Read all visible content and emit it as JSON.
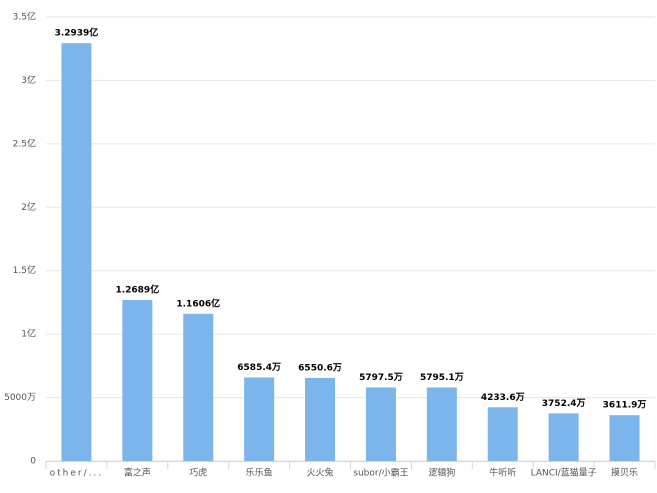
{
  "chart_data": {
    "type": "bar",
    "categories": [
      "other/...",
      "富之声",
      "巧虎",
      "乐乐鱼",
      "火火兔",
      "subor/小霸王",
      "逻辑狗",
      "牛听听",
      "LANCI/蓝猫量子",
      "摸贝乐"
    ],
    "values": [
      3.2939,
      1.2689,
      1.1606,
      0.65854,
      0.65506,
      0.57975,
      0.57951,
      0.42336,
      0.37524,
      0.36119
    ],
    "value_labels": [
      "3.2939亿",
      "1.2689亿",
      "1.1606亿",
      "6585.4万",
      "6550.6万",
      "5797.5万",
      "5795.1万",
      "4233.6万",
      "3752.4万",
      "3611.9万"
    ],
    "color": "#7cb5ec",
    "ylim": [
      0,
      3.5
    ],
    "yticks": [
      0,
      {
        "value": 0.5,
        "label": "5000万"
      },
      {
        "value": 1,
        "label": "1亿"
      },
      {
        "value": 1.5,
        "label": "1.5亿"
      },
      {
        "value": 2,
        "label": "2亿"
      },
      {
        "value": 2.5,
        "label": "2.5亿"
      },
      {
        "value": 3,
        "label": "3亿"
      },
      {
        "value": 3.5,
        "label": "3.5亿"
      }
    ],
    "grid": true
  }
}
